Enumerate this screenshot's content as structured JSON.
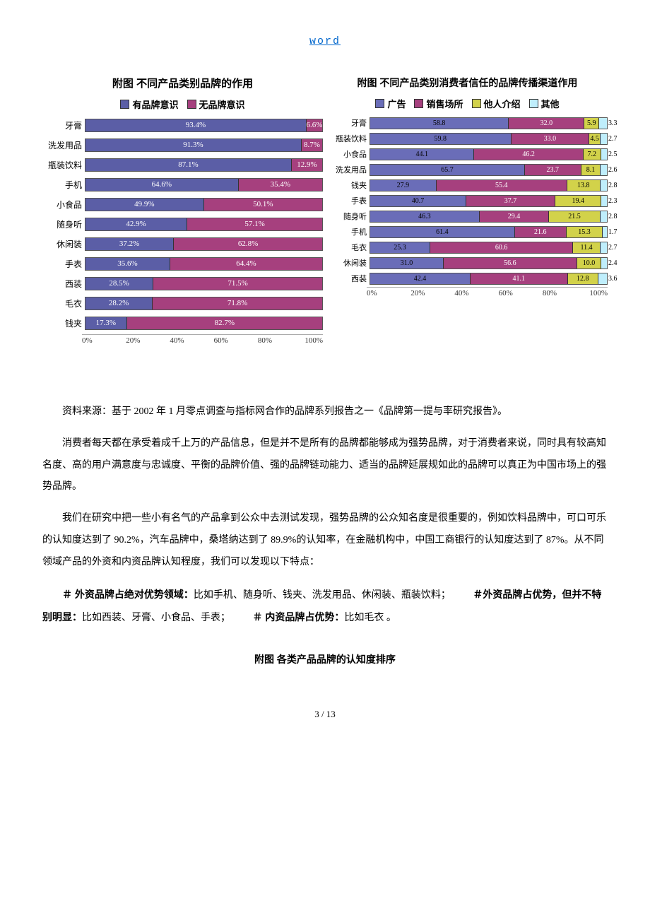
{
  "header_link": "word",
  "chart1": {
    "title": "附图  不同产品类别品牌的作用",
    "type": "stacked_bar_horizontal",
    "legend": [
      {
        "label": "有品牌意识",
        "color": "#5b5ea6"
      },
      {
        "label": "无品牌意识",
        "color": "#a6407e"
      }
    ],
    "categories": [
      "牙膏",
      "洗发用品",
      "瓶装饮料",
      "手机",
      "小食品",
      "随身听",
      "休闲装",
      "手表",
      "西装",
      "毛衣",
      "钱夹"
    ],
    "series": [
      {
        "name": "有品牌意识",
        "color": "#5b5ea6",
        "text_color": "#ffffff",
        "values": [
          93.4,
          91.3,
          87.1,
          64.6,
          49.9,
          42.9,
          37.2,
          35.6,
          28.5,
          28.2,
          17.3
        ]
      },
      {
        "name": "无品牌意识",
        "color": "#a6407e",
        "text_color": "#ffffff",
        "values": [
          6.6,
          8.7,
          12.9,
          35.4,
          50.1,
          57.1,
          62.8,
          64.4,
          71.5,
          71.8,
          82.7
        ]
      }
    ],
    "axis_labels": [
      "0%",
      "20%",
      "40%",
      "60%",
      "80%",
      "100%"
    ],
    "value_suffix": "%"
  },
  "chart2": {
    "title": "附图  不同产品类别消费者信任的品牌传播渠道作用",
    "type": "stacked_bar_horizontal",
    "legend": [
      {
        "label": "广告",
        "color": "#6a6db8"
      },
      {
        "label": "销售场所",
        "color": "#a6407e"
      },
      {
        "label": "他人介绍",
        "color": "#d2d24a"
      },
      {
        "label": "其他",
        "color": "#bfeefc"
      }
    ],
    "categories": [
      "牙膏",
      "瓶装饮料",
      "小食品",
      "洗发用品",
      "钱夹",
      "手表",
      "随身听",
      "手机",
      "毛衣",
      "休闲装",
      "西装"
    ],
    "series": [
      {
        "name": "广告",
        "color": "#6a6db8",
        "text_color": "#000000",
        "values": [
          58.8,
          59.8,
          44.1,
          65.7,
          27.9,
          40.7,
          46.3,
          61.4,
          25.3,
          31.0,
          42.4
        ]
      },
      {
        "name": "销售场所",
        "color": "#a6407e",
        "text_color": "#ffffff",
        "values": [
          32.0,
          33.0,
          46.2,
          23.7,
          55.4,
          37.7,
          29.4,
          21.6,
          60.6,
          56.6,
          41.1
        ]
      },
      {
        "name": "他人介绍",
        "color": "#d2d24a",
        "text_color": "#000000",
        "values": [
          5.9,
          4.5,
          7.2,
          8.1,
          13.8,
          19.4,
          21.5,
          15.3,
          11.4,
          10.0,
          12.8
        ]
      },
      {
        "name": "其他",
        "color": "#bfeefc",
        "text_color": "#000000",
        "out": true,
        "values": [
          3.3,
          2.7,
          2.5,
          2.6,
          2.8,
          2.3,
          2.8,
          1.7,
          2.7,
          2.4,
          3.6
        ]
      }
    ],
    "axis_labels": [
      "0%",
      "20%",
      "40%",
      "60%",
      "80%",
      "100%"
    ]
  },
  "source_text": "资料来源：基于 2002 年 1 月零点调查与指标网合作的品牌系列报告之一《品牌第一提与率研究报告》。",
  "para1": "消费者每天都在承受着成千上万的产品信息，但是并不是所有的品牌都能够成为强势品牌，对于消费者来说，同时具有较高知名度、高的用户满意度与忠诚度、平衡的品牌价值、强的品牌链动能力、适当的品牌延展规如此的品牌可以真正为中国市场上的强势品牌。",
  "para2": "我们在研究中把一些小有名气的产品拿到公众中去测试发现，强势品牌的公众知名度是很重要的，例如饮料品牌中，可口可乐的认知度达到了 90.2%，汽车品牌中，桑塔纳达到了 89.9%的认知率，在金融机构中，中国工商银行的认知度达到了 87%。从不同领域产品的外资和内资品牌认知程度，我们可以发现以下特点：",
  "hash_line": {
    "s1_label": "＃ 外资品牌占绝对优势领域：",
    "s1_text": "比如手机、随身听、钱夹、洗发用品、休闲装、瓶装饮料；",
    "s2_label": "＃外资品牌占优势，但并不特别明显：",
    "s2_text": "比如西装、牙膏、小食品、手表；",
    "s3_label": "＃ 内资品牌占优势：",
    "s3_text": "比如毛衣 。"
  },
  "subtitle": "附图  各类产品品牌的认知度排序",
  "page_num": "3 / 13"
}
